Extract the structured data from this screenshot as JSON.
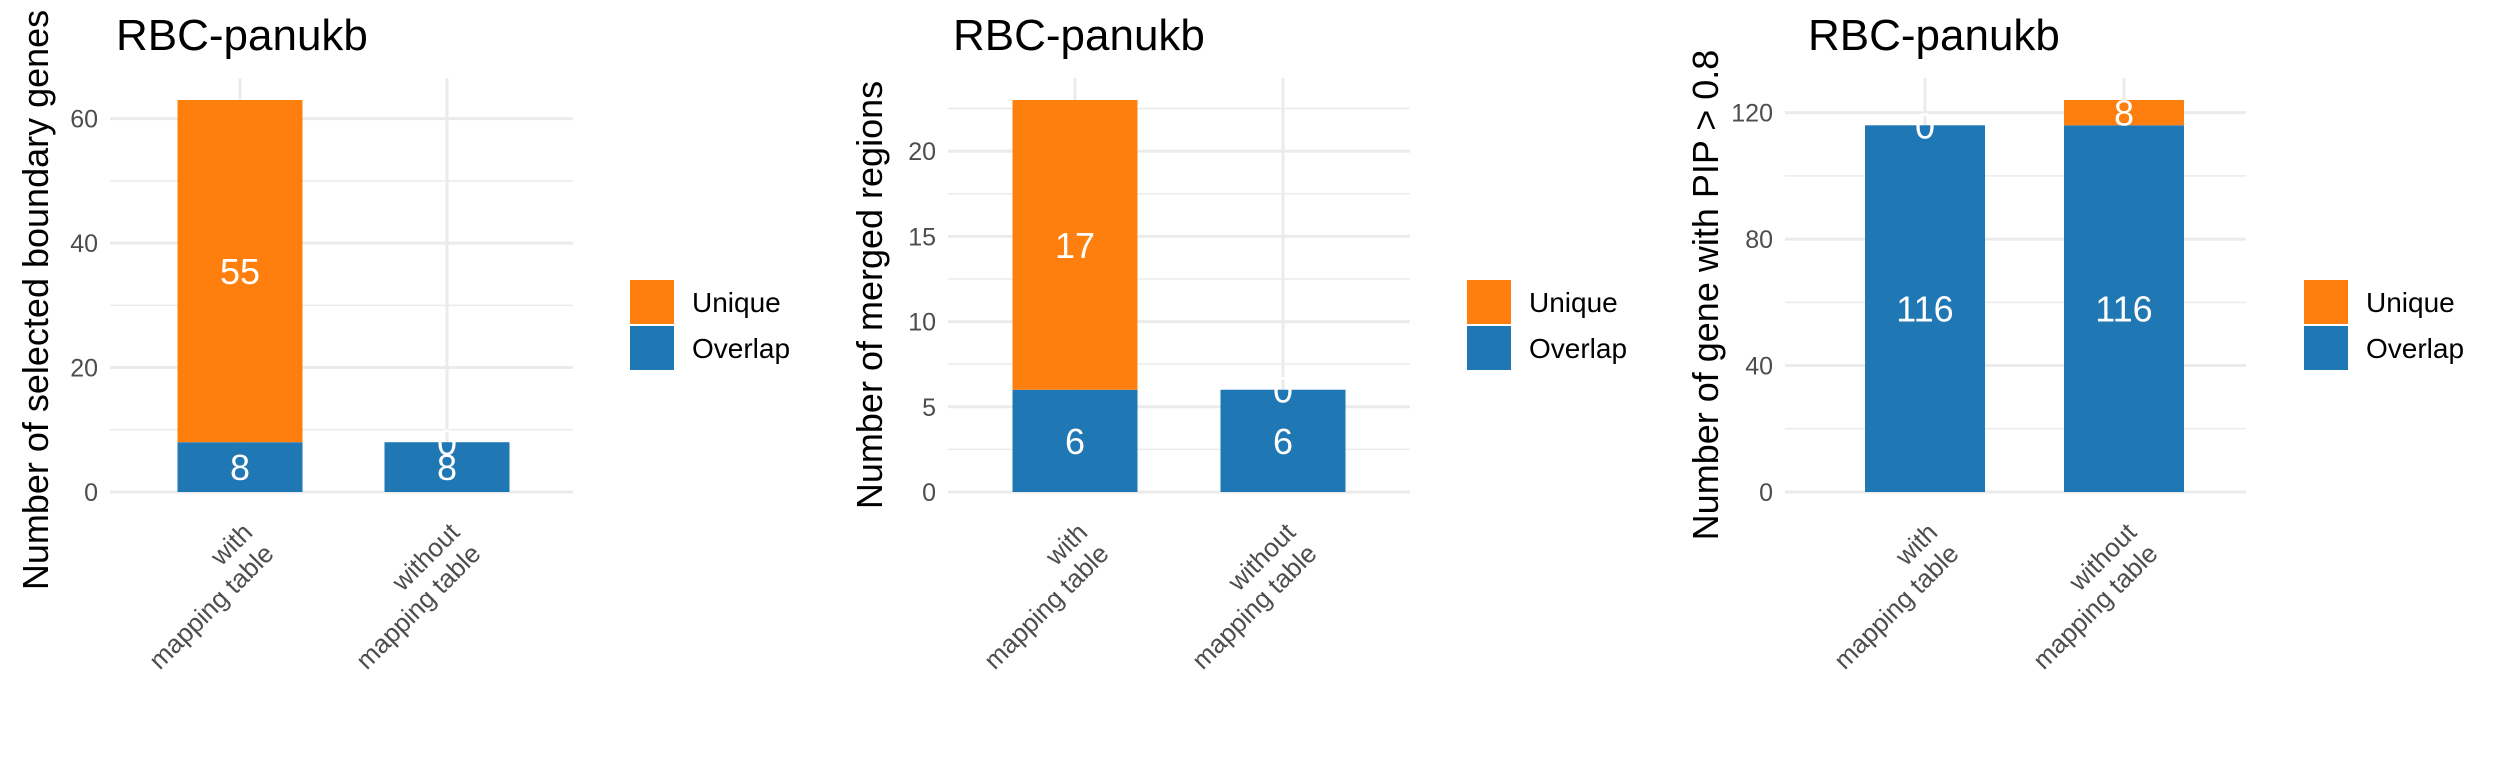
{
  "colors": {
    "unique": "#ff7f0e",
    "overlap": "#1f77b4",
    "grid": "#ebebeb"
  },
  "legend_entries": [
    {
      "label": "Unique",
      "color": "#ff7f0e"
    },
    {
      "label": "Overlap",
      "color": "#1f77b4"
    }
  ],
  "chart_data": [
    {
      "type": "bar",
      "stacked": true,
      "title": "RBC-panukb",
      "ylabel": "Number of selected boundary genes",
      "categories": [
        [
          "with",
          "mapping table"
        ],
        [
          "without",
          "mapping table"
        ]
      ],
      "series": [
        {
          "name": "Overlap",
          "values": [
            8,
            8
          ]
        },
        {
          "name": "Unique",
          "values": [
            55,
            0
          ]
        }
      ],
      "ylim": [
        0,
        63
      ],
      "yticks": [
        0,
        20,
        40,
        60
      ],
      "grid": true,
      "legend": "right"
    },
    {
      "type": "bar",
      "stacked": true,
      "title": "RBC-panukb",
      "ylabel": "Number of merged regions",
      "categories": [
        [
          "with",
          "mapping table"
        ],
        [
          "without",
          "mapping table"
        ]
      ],
      "series": [
        {
          "name": "Overlap",
          "values": [
            6,
            6
          ]
        },
        {
          "name": "Unique",
          "values": [
            17,
            0
          ]
        }
      ],
      "ylim": [
        0,
        23
      ],
      "yticks": [
        0,
        5,
        10,
        15,
        20
      ],
      "grid": true,
      "legend": "right"
    },
    {
      "type": "bar",
      "stacked": true,
      "title": "RBC-panukb",
      "ylabel": "Number of gene with PIP > 0.8",
      "categories": [
        [
          "with",
          "mapping table"
        ],
        [
          "without",
          "mapping table"
        ]
      ],
      "series": [
        {
          "name": "Overlap",
          "values": [
            116,
            116
          ]
        },
        {
          "name": "Unique",
          "values": [
            0,
            8
          ]
        }
      ],
      "ylim": [
        0,
        124
      ],
      "yticks": [
        0,
        40,
        80,
        120
      ],
      "grid": true,
      "legend": "right"
    }
  ]
}
